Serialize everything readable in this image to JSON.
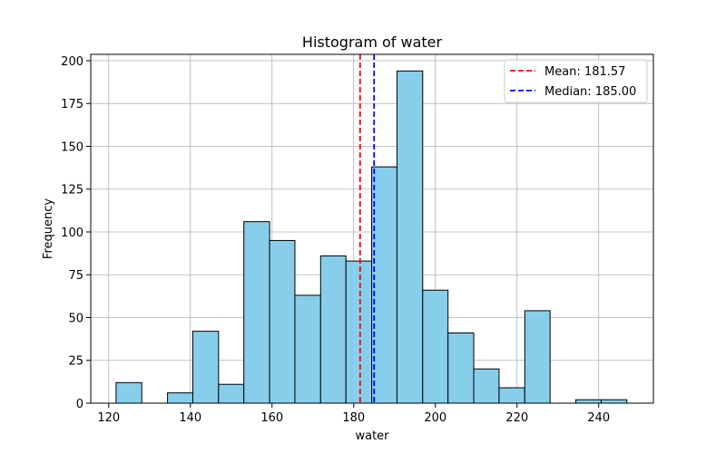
{
  "chart_data": {
    "type": "bar",
    "title": "Histogram of water",
    "xlabel": "water",
    "ylabel": "Frequency",
    "xlim": [
      115.6,
      253.4
    ],
    "ylim": [
      0,
      203.7
    ],
    "xticks": [
      120,
      140,
      160,
      180,
      200,
      220,
      240
    ],
    "yticks": [
      0,
      25,
      50,
      75,
      100,
      125,
      150,
      175,
      200
    ],
    "grid": true,
    "bar_color": "#87ceeb",
    "edge_color": "#000000",
    "bins": [
      {
        "x0": 121.8,
        "x1": 128.1,
        "count": 12
      },
      {
        "x0": 128.1,
        "x1": 134.4,
        "count": 0
      },
      {
        "x0": 134.4,
        "x1": 140.6,
        "count": 6
      },
      {
        "x0": 140.6,
        "x1": 146.9,
        "count": 42
      },
      {
        "x0": 146.9,
        "x1": 153.1,
        "count": 11
      },
      {
        "x0": 153.1,
        "x1": 159.4,
        "count": 106
      },
      {
        "x0": 159.4,
        "x1": 165.6,
        "count": 95
      },
      {
        "x0": 165.6,
        "x1": 171.9,
        "count": 63
      },
      {
        "x0": 171.9,
        "x1": 178.1,
        "count": 86
      },
      {
        "x0": 178.1,
        "x1": 184.4,
        "count": 83
      },
      {
        "x0": 184.4,
        "x1": 190.6,
        "count": 138
      },
      {
        "x0": 190.6,
        "x1": 196.9,
        "count": 194
      },
      {
        "x0": 196.9,
        "x1": 203.1,
        "count": 66
      },
      {
        "x0": 203.1,
        "x1": 209.4,
        "count": 41
      },
      {
        "x0": 209.4,
        "x1": 215.6,
        "count": 20
      },
      {
        "x0": 215.6,
        "x1": 221.9,
        "count": 9
      },
      {
        "x0": 221.9,
        "x1": 228.1,
        "count": 54
      },
      {
        "x0": 228.1,
        "x1": 234.4,
        "count": 0
      },
      {
        "x0": 234.4,
        "x1": 240.6,
        "count": 2
      },
      {
        "x0": 240.6,
        "x1": 246.9,
        "count": 2
      }
    ],
    "reference_lines": [
      {
        "label": "Mean: 181.57",
        "value": 181.57,
        "color": "#ff0000",
        "style": "dashed"
      },
      {
        "label": "Median: 185.00",
        "value": 185.0,
        "color": "#0000ff",
        "style": "dashed"
      }
    ],
    "legend_position": "top-right"
  }
}
